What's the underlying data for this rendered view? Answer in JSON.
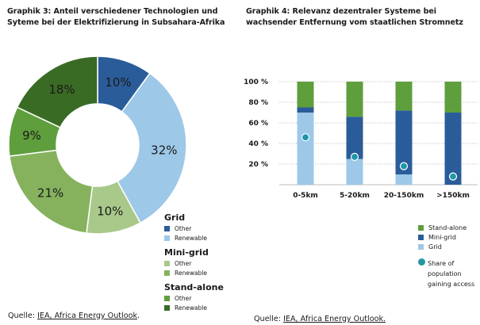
{
  "chart_data": [
    {
      "type": "pie",
      "variant": "donut",
      "title": "Graphik 3: Anteil verschiedener Technologien und Syteme bei der Elektrifizierung in Subsahara-Afrika",
      "slices": [
        {
          "group": "Grid",
          "label": "Other",
          "value": 10,
          "display": "10%",
          "color": "#2b5c9a"
        },
        {
          "group": "Grid",
          "label": "Renewable",
          "value": 32,
          "display": "32%",
          "color": "#9dc8e8"
        },
        {
          "group": "Mini-grid",
          "label": "Other",
          "value": 10,
          "display": "10%",
          "color": "#a9c98a"
        },
        {
          "group": "Mini-grid",
          "label": "Renewable",
          "value": 21,
          "display": "21%",
          "color": "#86b25e"
        },
        {
          "group": "Stand-alone",
          "label": "Other",
          "value": 9,
          "display": "9%",
          "color": "#5f9e3c"
        },
        {
          "group": "Stand-alone",
          "label": "Renewable",
          "value": 18,
          "display": "18%",
          "color": "#3a6b25"
        }
      ],
      "legend": [
        {
          "heading": "Grid",
          "items": [
            {
              "label": "Other",
              "color": "#2b5c9a"
            },
            {
              "label": "Renewable",
              "color": "#9dc8e8"
            }
          ]
        },
        {
          "heading": "Mini-grid",
          "items": [
            {
              "label": "Other",
              "color": "#a9c98a"
            },
            {
              "label": "Renewable",
              "color": "#86b25e"
            }
          ]
        },
        {
          "heading": "Stand-alone",
          "items": [
            {
              "label": "Other",
              "color": "#5f9e3c"
            },
            {
              "label": "Renewable",
              "color": "#3a6b25"
            }
          ]
        }
      ],
      "legend_position": "bottom-right",
      "source_prefix": "Quelle: ",
      "source_link": "IEA, Africa Energy Outlook",
      "source_suffix": "."
    },
    {
      "type": "bar",
      "stacked": true,
      "title": "Graphik 4: Relevanz dezentraler Systeme bei wachsender Entfernung vom staatlichen Stromnetz",
      "categories": [
        "0-5km",
        "5-20km",
        "20-150km",
        ">150km"
      ],
      "series": [
        {
          "name": "Grid",
          "values": [
            70,
            25,
            10,
            0
          ],
          "color": "#9dc8e8"
        },
        {
          "name": "Mini-grid",
          "values": [
            5,
            41,
            62,
            70
          ],
          "color": "#2b5c9a"
        },
        {
          "name": "Stand-alone",
          "values": [
            25,
            34,
            28,
            30
          ],
          "color": "#5f9e3c"
        }
      ],
      "markers": {
        "name": "Share of population gaining access",
        "values": [
          46,
          27,
          18,
          8
        ],
        "color": "#1f97a8"
      },
      "ylim": [
        0,
        100
      ],
      "yticks": [
        20,
        40,
        60,
        80,
        100
      ],
      "ytick_labels": [
        "20 %",
        "40 %",
        "60 %",
        "80 %",
        "100 %"
      ],
      "grid": true,
      "legend": [
        {
          "label": "Stand-alone",
          "color": "#5f9e3c"
        },
        {
          "label": "Mini-grid",
          "color": "#2b5c9a"
        },
        {
          "label": "Grid",
          "color": "#9dc8e8"
        }
      ],
      "marker_legend_lines": [
        "Share of",
        "population",
        "gaining access"
      ],
      "legend_position": "bottom-right",
      "source_prefix": "Quelle: ",
      "source_link": "IEA, Africa Energy Outlook.",
      "source_suffix": ""
    }
  ]
}
